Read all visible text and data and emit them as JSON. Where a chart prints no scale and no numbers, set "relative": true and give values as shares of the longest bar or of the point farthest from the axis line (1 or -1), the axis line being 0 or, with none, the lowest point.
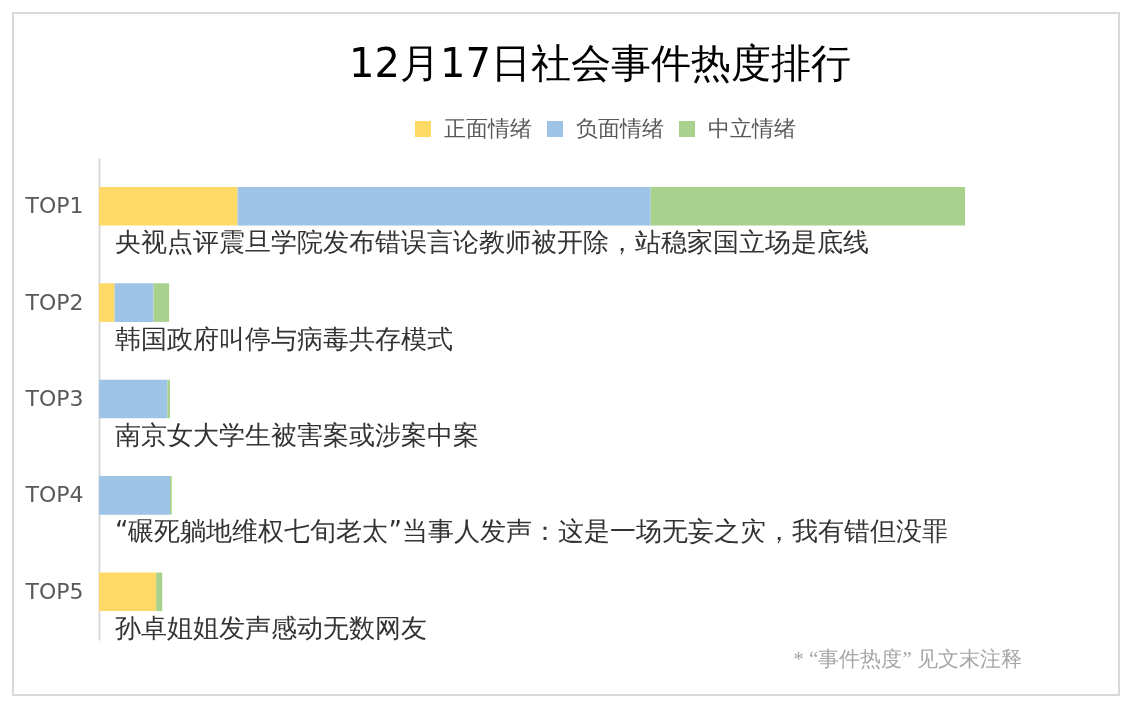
{
  "chart_data": {
    "type": "bar",
    "orientation": "horizontal",
    "stacked": true,
    "relative": true,
    "title": "12月17日社会事件热度排行",
    "categories": [
      "TOP1",
      "TOP2",
      "TOP3",
      "TOP4",
      "TOP5"
    ],
    "series": [
      {
        "name": "正面情绪",
        "color": "#ffd966",
        "values": [
          0.16,
          0.018,
          null,
          null,
          0.066
        ]
      },
      {
        "name": "负面情绪",
        "color": "#9dc3e6",
        "values": [
          0.477,
          0.045,
          0.079,
          0.082,
          null
        ]
      },
      {
        "name": "中立情绪",
        "color": "#a9d18e",
        "values": [
          0.363,
          0.018,
          0.003,
          0.002,
          0.007
        ]
      }
    ],
    "legend": "top",
    "annotations": [
      "央视点评震旦学院发布错误言论教师被开除，站稳家国立场是底线",
      "韩国政府叫停与病毒共存模式",
      "南京女大学生被害案或涉案中案",
      "“碾死躺地维权七旬老太”当事人发声：这是一场无妄之灾，我有错但没罪",
      "孙卓姐姐发声感动无数网友",
      "* “事件热度” 见文末注释"
    ]
  }
}
